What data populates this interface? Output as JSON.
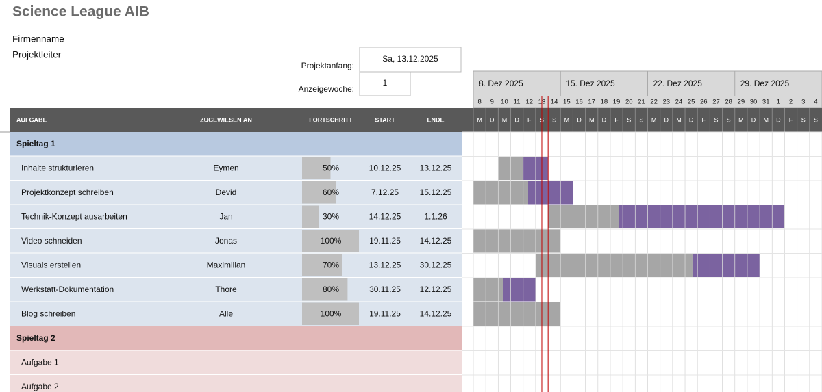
{
  "header": {
    "title": "Science League AIB",
    "company": "Firmenname",
    "lead": "Projektleiter",
    "start_label": "Projektanfang:",
    "start_value": "Sa, 13.12.2025",
    "week_label": "Anzeigewoche:",
    "week_value": "1"
  },
  "timeline": {
    "weeks": [
      "8. Dez 2025",
      "15. Dez 2025",
      "22. Dez 2025",
      "29. Dez 2025"
    ],
    "days": [
      8,
      9,
      10,
      11,
      12,
      13,
      14,
      15,
      16,
      17,
      18,
      19,
      20,
      21,
      22,
      23,
      24,
      25,
      26,
      27,
      28,
      29,
      30,
      31,
      1,
      2,
      3,
      4
    ],
    "weekdays": [
      "M",
      "D",
      "M",
      "D",
      "F",
      "S",
      "S"
    ]
  },
  "table": {
    "columns": [
      "AUFGABE",
      "ZUGEWIESEN AN",
      "FORTSCHRITT",
      "START",
      "ENDE"
    ],
    "groups": [
      {
        "name": "Spieltag 1",
        "tasks": [
          {
            "name": "Inhalte strukturieren",
            "assignee": "Eymen",
            "progress": "50%",
            "start": "10.12.25",
            "end": "13.12.25"
          },
          {
            "name": "Projektkonzept schreiben",
            "assignee": "Devid",
            "progress": "60%",
            "start": "7.12.25",
            "end": "15.12.25"
          },
          {
            "name": "Technik-Konzept ausarbeiten",
            "assignee": "Jan",
            "progress": "30%",
            "start": "14.12.25",
            "end": "1.1.26"
          },
          {
            "name": "Video schneiden",
            "assignee": "Jonas",
            "progress": "100%",
            "start": "19.11.25",
            "end": "14.12.25"
          },
          {
            "name": "Visuals erstellen",
            "assignee": "Maximilian",
            "progress": "70%",
            "start": "13.12.25",
            "end": "30.12.25"
          },
          {
            "name": "Werkstatt-Dokumentation",
            "assignee": "Thore",
            "progress": "80%",
            "start": "30.11.25",
            "end": "12.12.25"
          },
          {
            "name": "Blog schreiben",
            "assignee": "Alle",
            "progress": "100%",
            "start": "19.11.25",
            "end": "14.12.25"
          }
        ]
      },
      {
        "name": "Spieltag 2",
        "tasks": [
          {
            "name": "Aufgabe 1"
          },
          {
            "name": "Aufgabe 2"
          }
        ]
      }
    ]
  }
}
